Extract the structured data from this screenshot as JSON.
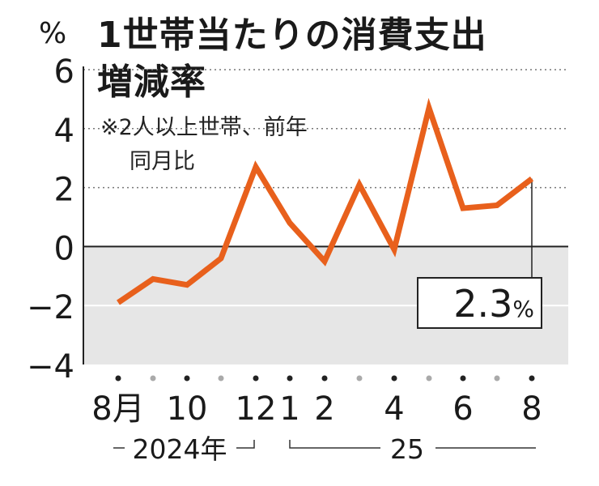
{
  "chart_data": {
    "type": "line",
    "title": "1世帯当たりの消費支出増減率",
    "title_lines": [
      "1世帯当たりの消費支出",
      "増減率"
    ],
    "note_lines": [
      "※2人以上世帯、前年",
      "同月比"
    ],
    "yunit": "%",
    "ylim": [
      -4,
      6
    ],
    "yticks": [
      6,
      4,
      2,
      0,
      -2,
      -4
    ],
    "ytick_labels": [
      "6",
      "4",
      "2",
      "0",
      "−2",
      "−4"
    ],
    "grid": "dotted",
    "negative_region_shaded": true,
    "x": [
      "2024-08",
      "2024-09",
      "2024-10",
      "2024-11",
      "2024-12",
      "2025-01",
      "2025-02",
      "2025-03",
      "2025-04",
      "2025-05",
      "2025-06",
      "2025-07",
      "2025-08"
    ],
    "xtick_labels": [
      "8月",
      "",
      "10",
      "",
      "12",
      "1",
      "2",
      "",
      "4",
      "",
      "6",
      "",
      "8"
    ],
    "year_labels": [
      "2024年",
      "25"
    ],
    "series": [
      {
        "values": [
          -1.9,
          -1.1,
          -1.3,
          -0.4,
          2.7,
          0.8,
          -0.5,
          2.1,
          -0.1,
          4.7,
          1.3,
          1.4,
          2.3
        ],
        "color": "#e8601c"
      }
    ],
    "annotation": {
      "value": "2.3",
      "unit": "%"
    },
    "colors": {
      "line": "#e8601c",
      "shade": "#e6e6e6",
      "axis": "#222222",
      "grid": "#777777"
    }
  }
}
